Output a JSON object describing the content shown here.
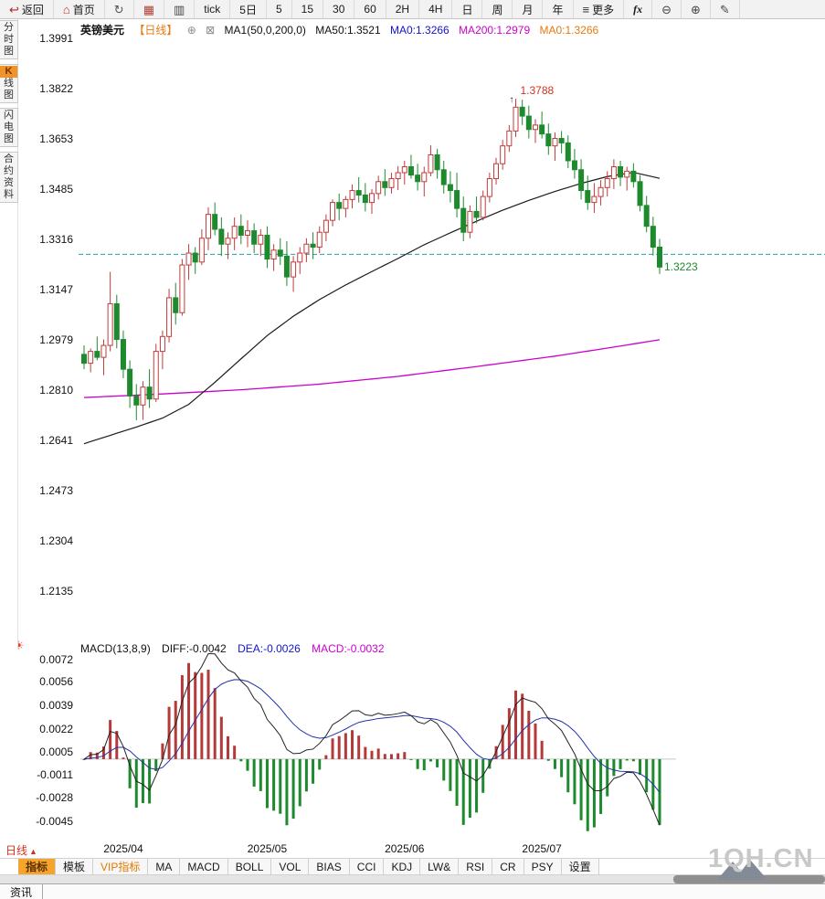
{
  "colors": {
    "up": "#c23b3b",
    "down": "#1e8a2e",
    "ma50": "#1a1a1a",
    "ma200": "#cc00cc",
    "diff": "#222222",
    "dea": "#2233aa",
    "price_line": "#20a0a0",
    "accent_orange": "#e8790c",
    "blue_text": "#1414cc",
    "magenta_text": "#cc00cc",
    "red_text": "#d3321e",
    "green_text": "#1e8a2e",
    "tab_selected_bg": "#f5a52b",
    "watermark": "#c8c8c8",
    "hist_up": "#b43a3a",
    "hist_down": "#1e8a2e"
  },
  "toolbar": {
    "items": [
      {
        "name": "back-button",
        "glyph": "↩",
        "glyph_color": "#a03020",
        "label": "返回"
      },
      {
        "name": "home-button",
        "glyph": "⌂",
        "glyph_color": "#c03028",
        "label": "首页"
      },
      {
        "name": "refresh-button",
        "glyph": "↻",
        "glyph_color": "#555555",
        "label": ""
      },
      {
        "name": "kline-chart-button",
        "glyph": "▦",
        "glyph_color": "#b04038",
        "label": ""
      },
      {
        "name": "bar-chart-button",
        "glyph": "▥",
        "glyph_color": "#444444",
        "label": ""
      },
      {
        "name": "interval-tick-button",
        "label": "tick"
      },
      {
        "name": "interval-5d-button",
        "label": "5日"
      },
      {
        "name": "interval-5-button",
        "label": "5"
      },
      {
        "name": "interval-15-button",
        "label": "15"
      },
      {
        "name": "interval-30-button",
        "label": "30"
      },
      {
        "name": "interval-60-button",
        "label": "60"
      },
      {
        "name": "interval-2h-button",
        "label": "2H"
      },
      {
        "name": "interval-4h-button",
        "label": "4H"
      },
      {
        "name": "interval-day-button",
        "label": "日"
      },
      {
        "name": "interval-week-button",
        "label": "周"
      },
      {
        "name": "interval-month-button",
        "label": "月"
      },
      {
        "name": "interval-year-button",
        "label": "年"
      },
      {
        "name": "more-menu-button",
        "glyph": "≡",
        "glyph_color": "#333333",
        "label": "更多"
      },
      {
        "name": "formula-button",
        "label": "fx",
        "italic": true
      },
      {
        "name": "zoom-out-button",
        "glyph": "⊖",
        "glyph_color": "#444444",
        "label": ""
      },
      {
        "name": "zoom-in-button",
        "glyph": "⊕",
        "glyph_color": "#444444",
        "label": ""
      },
      {
        "name": "draw-tool-button",
        "glyph": "✎",
        "glyph_color": "#444444",
        "label": ""
      }
    ]
  },
  "sidebar": {
    "tabs": [
      {
        "name": "sidebar-tab-time-chart",
        "label": "分时图",
        "selected": false
      },
      {
        "name": "sidebar-tab-kline-chart",
        "label": "K线图",
        "selected": true
      },
      {
        "name": "sidebar-tab-flash-chart",
        "label": "闪电图",
        "selected": false
      },
      {
        "name": "sidebar-tab-contract-info",
        "label": "合约资料",
        "selected": false
      }
    ]
  },
  "price_header": {
    "symbol": "英镑美元",
    "period": "【日线】",
    "plus_icon": "⊕",
    "box_icon": "⊠",
    "ma_settings": "MA1(50,0,200,0)",
    "ma50": "MA50:1.3521",
    "ma0_blue": "MA0:1.3266",
    "ma200": "MA200:1.2979",
    "ma0_orange": "MA0:1.3266"
  },
  "macd_header": {
    "settings_icon": "☀",
    "title": "MACD(13,8,9)",
    "diff": "DIFF:-0.0042",
    "dea": "DEA:-0.0026",
    "macd": "MACD:-0.0032"
  },
  "indicator_bar": {
    "period_label": "日线",
    "arrow": "▲",
    "tabs": [
      {
        "name": "indicator-tab-zhibiao",
        "label": "指标",
        "selected": true
      },
      {
        "name": "indicator-tab-moban",
        "label": "模板"
      },
      {
        "name": "indicator-tab-vip",
        "label": "VIP指标",
        "vip": true
      },
      {
        "name": "indicator-tab-ma",
        "label": "MA"
      },
      {
        "name": "indicator-tab-macd",
        "label": "MACD"
      },
      {
        "name": "indicator-tab-boll",
        "label": "BOLL"
      },
      {
        "name": "indicator-tab-vol",
        "label": "VOL"
      },
      {
        "name": "indicator-tab-bias",
        "label": "BIAS"
      },
      {
        "name": "indicator-tab-cci",
        "label": "CCI"
      },
      {
        "name": "indicator-tab-kdj",
        "label": "KDJ"
      },
      {
        "name": "indicator-tab-lw",
        "label": "LW&"
      },
      {
        "name": "indicator-tab-rsi",
        "label": "RSI"
      },
      {
        "name": "indicator-tab-cr",
        "label": "CR"
      },
      {
        "name": "indicator-tab-psy",
        "label": "PSY"
      },
      {
        "name": "indicator-tab-shezhi",
        "label": "设置"
      }
    ]
  },
  "bottom_bar": {
    "news_label": "资讯"
  },
  "watermark_text": "1QH.CN",
  "chart_data": {
    "type": "candlestick",
    "title": "英镑美元 日线 (GBP/USD Daily)",
    "y_ticks": [
      "1.3991",
      "1.3822",
      "1.3653",
      "1.3485",
      "1.3316",
      "1.3147",
      "1.2979",
      "1.2810",
      "1.2641",
      "1.2473",
      "1.2304",
      "1.2135"
    ],
    "macd_y_ticks": [
      "0.0072",
      "0.0056",
      "0.0039",
      "0.0022",
      "0.0005",
      "-0.0011",
      "-0.0028",
      "-0.0045"
    ],
    "x_ticks": [
      {
        "label": "2025/04",
        "index": 6
      },
      {
        "label": "2025/05",
        "index": 28
      },
      {
        "label": "2025/06",
        "index": 49
      },
      {
        "label": "2025/07",
        "index": 70
      }
    ],
    "current_price_line": 1.3266,
    "high_annotation": {
      "label": "1.3788",
      "value": 1.3788,
      "index": 66,
      "arrow": "↑"
    },
    "last_annotation": {
      "label": "1.3223",
      "value": 1.3223,
      "index": 88
    },
    "macd_params": [
      13,
      8,
      9
    ],
    "candles": [
      [
        1.293,
        1.296,
        1.288,
        1.29
      ],
      [
        1.29,
        1.295,
        1.287,
        1.294
      ],
      [
        1.294,
        1.299,
        1.291,
        1.292
      ],
      [
        1.292,
        1.298,
        1.286,
        1.296
      ],
      [
        1.296,
        1.3207,
        1.294,
        1.31
      ],
      [
        1.31,
        1.313,
        1.295,
        1.298
      ],
      [
        1.298,
        1.301,
        1.285,
        1.288
      ],
      [
        1.288,
        1.291,
        1.275,
        1.279
      ],
      [
        1.279,
        1.283,
        1.2709,
        1.276
      ],
      [
        1.276,
        1.284,
        1.271,
        1.282
      ],
      [
        1.282,
        1.288,
        1.275,
        1.278
      ],
      [
        1.278,
        1.2965,
        1.277,
        1.294
      ],
      [
        1.294,
        1.301,
        1.288,
        1.299
      ],
      [
        1.299,
        1.315,
        1.297,
        1.312
      ],
      [
        1.312,
        1.317,
        1.303,
        1.307
      ],
      [
        1.307,
        1.325,
        1.306,
        1.323
      ],
      [
        1.323,
        1.33,
        1.318,
        1.327
      ],
      [
        1.327,
        1.329,
        1.32,
        1.324
      ],
      [
        1.324,
        1.335,
        1.323,
        1.332
      ],
      [
        1.332,
        1.3424,
        1.328,
        1.34
      ],
      [
        1.34,
        1.344,
        1.333,
        1.335
      ],
      [
        1.335,
        1.339,
        1.326,
        1.33
      ],
      [
        1.33,
        1.334,
        1.325,
        1.332
      ],
      [
        1.332,
        1.339,
        1.328,
        1.336
      ],
      [
        1.336,
        1.34,
        1.33,
        1.333
      ],
      [
        1.333,
        1.338,
        1.329,
        1.3345
      ],
      [
        1.3345,
        1.337,
        1.327,
        1.33
      ],
      [
        1.33,
        1.335,
        1.326,
        1.333
      ],
      [
        1.333,
        1.336,
        1.322,
        1.325
      ],
      [
        1.325,
        1.33,
        1.321,
        1.328
      ],
      [
        1.328,
        1.332,
        1.323,
        1.326
      ],
      [
        1.326,
        1.331,
        1.316,
        1.319
      ],
      [
        1.319,
        1.326,
        1.314,
        1.324
      ],
      [
        1.324,
        1.329,
        1.32,
        1.327
      ],
      [
        1.327,
        1.332,
        1.324,
        1.33
      ],
      [
        1.33,
        1.334,
        1.325,
        1.329
      ],
      [
        1.329,
        1.336,
        1.327,
        1.334
      ],
      [
        1.334,
        1.34,
        1.331,
        1.338
      ],
      [
        1.338,
        1.345,
        1.336,
        1.344
      ],
      [
        1.344,
        1.347,
        1.338,
        1.342
      ],
      [
        1.342,
        1.3462,
        1.339,
        1.345
      ],
      [
        1.345,
        1.35,
        1.342,
        1.348
      ],
      [
        1.348,
        1.3525,
        1.344,
        1.3465
      ],
      [
        1.3465,
        1.3505,
        1.341,
        1.344
      ],
      [
        1.344,
        1.3485,
        1.3402,
        1.347
      ],
      [
        1.347,
        1.353,
        1.345,
        1.351
      ],
      [
        1.351,
        1.3552,
        1.3462,
        1.349
      ],
      [
        1.349,
        1.354,
        1.347,
        1.352
      ],
      [
        1.352,
        1.3562,
        1.3482,
        1.354
      ],
      [
        1.354,
        1.358,
        1.35,
        1.356
      ],
      [
        1.356,
        1.36,
        1.352,
        1.3532
      ],
      [
        1.3532,
        1.357,
        1.348,
        1.351
      ],
      [
        1.351,
        1.356,
        1.346,
        1.354
      ],
      [
        1.354,
        1.3632,
        1.3528,
        1.36
      ],
      [
        1.36,
        1.362,
        1.352,
        1.355
      ],
      [
        1.355,
        1.358,
        1.347,
        1.35
      ],
      [
        1.35,
        1.3545,
        1.344,
        1.348
      ],
      [
        1.348,
        1.354,
        1.339,
        1.342
      ],
      [
        1.342,
        1.346,
        1.331,
        1.334
      ],
      [
        1.334,
        1.343,
        1.332,
        1.341
      ],
      [
        1.341,
        1.346,
        1.337,
        1.339
      ],
      [
        1.339,
        1.348,
        1.338,
        1.346
      ],
      [
        1.346,
        1.354,
        1.344,
        1.352
      ],
      [
        1.352,
        1.359,
        1.35,
        1.357
      ],
      [
        1.357,
        1.365,
        1.355,
        1.363
      ],
      [
        1.363,
        1.37,
        1.361,
        1.368
      ],
      [
        1.368,
        1.3788,
        1.366,
        1.376
      ],
      [
        1.376,
        1.3785,
        1.37,
        1.373
      ],
      [
        1.373,
        1.3765,
        1.3655,
        1.3685
      ],
      [
        1.3685,
        1.372,
        1.364,
        1.37
      ],
      [
        1.37,
        1.3745,
        1.3655,
        1.367
      ],
      [
        1.367,
        1.3705,
        1.36,
        1.363
      ],
      [
        1.363,
        1.3675,
        1.358,
        1.3655
      ],
      [
        1.3655,
        1.368,
        1.3605,
        1.364
      ],
      [
        1.364,
        1.3665,
        1.3555,
        1.358
      ],
      [
        1.358,
        1.362,
        1.352,
        1.355
      ],
      [
        1.355,
        1.3585,
        1.345,
        1.348
      ],
      [
        1.348,
        1.353,
        1.3415,
        1.344
      ],
      [
        1.344,
        1.3505,
        1.3405,
        1.346
      ],
      [
        1.346,
        1.3515,
        1.343,
        1.349
      ],
      [
        1.349,
        1.3545,
        1.346,
        1.352
      ],
      [
        1.352,
        1.3585,
        1.3485,
        1.356
      ],
      [
        1.356,
        1.358,
        1.3495,
        1.3525
      ],
      [
        1.3525,
        1.356,
        1.348,
        1.3545
      ],
      [
        1.3545,
        1.3572,
        1.349,
        1.351
      ],
      [
        1.351,
        1.3532,
        1.341,
        1.343
      ],
      [
        1.343,
        1.3462,
        1.334,
        1.336
      ],
      [
        1.336,
        1.3392,
        1.3262,
        1.329
      ],
      [
        1.329,
        1.3318,
        1.32,
        1.3223
      ]
    ],
    "ma50_points": [
      [
        0,
        1.263
      ],
      [
        4,
        1.2658
      ],
      [
        8,
        1.2686
      ],
      [
        12,
        1.2716
      ],
      [
        16,
        1.2762
      ],
      [
        20,
        1.2836
      ],
      [
        24,
        1.2915
      ],
      [
        28,
        1.2993
      ],
      [
        32,
        1.3058
      ],
      [
        36,
        1.3114
      ],
      [
        40,
        1.3163
      ],
      [
        44,
        1.3208
      ],
      [
        48,
        1.3252
      ],
      [
        52,
        1.3298
      ],
      [
        56,
        1.3338
      ],
      [
        60,
        1.3377
      ],
      [
        64,
        1.3414
      ],
      [
        68,
        1.3447
      ],
      [
        72,
        1.3477
      ],
      [
        76,
        1.3504
      ],
      [
        80,
        1.3527
      ],
      [
        84,
        1.3541
      ],
      [
        88,
        1.3521
      ]
    ],
    "ma200_points": [
      [
        0,
        1.2785
      ],
      [
        12,
        1.2797
      ],
      [
        24,
        1.2811
      ],
      [
        36,
        1.283
      ],
      [
        48,
        1.2856
      ],
      [
        60,
        1.2889
      ],
      [
        72,
        1.2924
      ],
      [
        80,
        1.2951
      ],
      [
        88,
        1.2979
      ]
    ]
  }
}
